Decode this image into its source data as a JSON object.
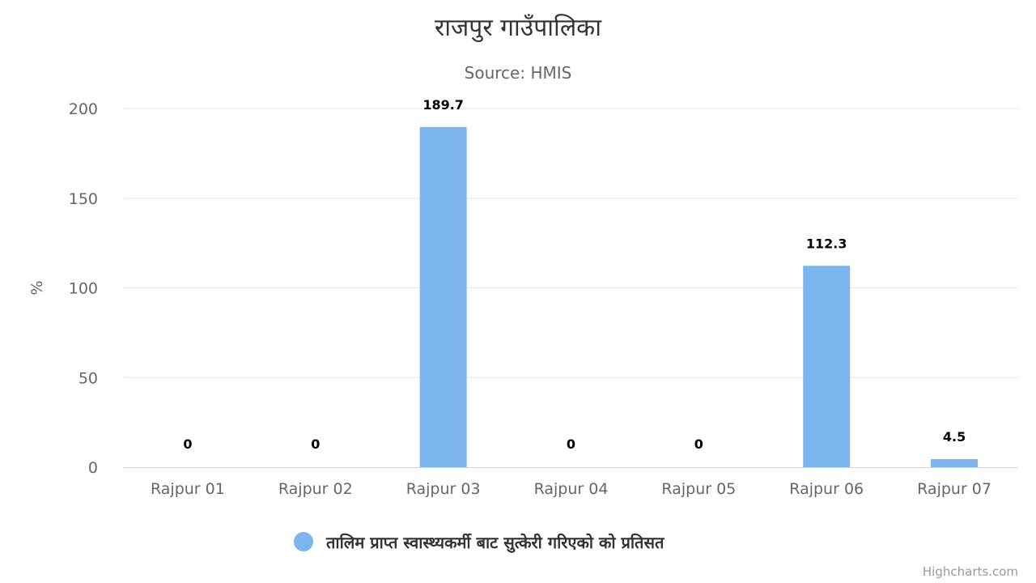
{
  "chart_data": {
    "type": "bar",
    "title": "राजपुर गाउँपालिका",
    "subtitle": "Source: HMIS",
    "xlabel": "",
    "ylabel": "%",
    "categories": [
      "Rajpur 01",
      "Rajpur 02",
      "Rajpur 03",
      "Rajpur 04",
      "Rajpur 05",
      "Rajpur 06",
      "Rajpur 07"
    ],
    "series": [
      {
        "name": "तालिम प्राप्त स्वास्थ्यकर्मी बाट सुत्केरी गरिएको को प्रतिसत",
        "values": [
          0,
          0,
          189.7,
          0,
          0,
          112.3,
          4.5
        ],
        "color": "#7cb5ec"
      }
    ],
    "ylim": [
      0,
      200
    ],
    "yticks": [
      0,
      50,
      100,
      150,
      200
    ],
    "grid": true,
    "legend": "bottom-center"
  },
  "credits": "Highcharts.com"
}
